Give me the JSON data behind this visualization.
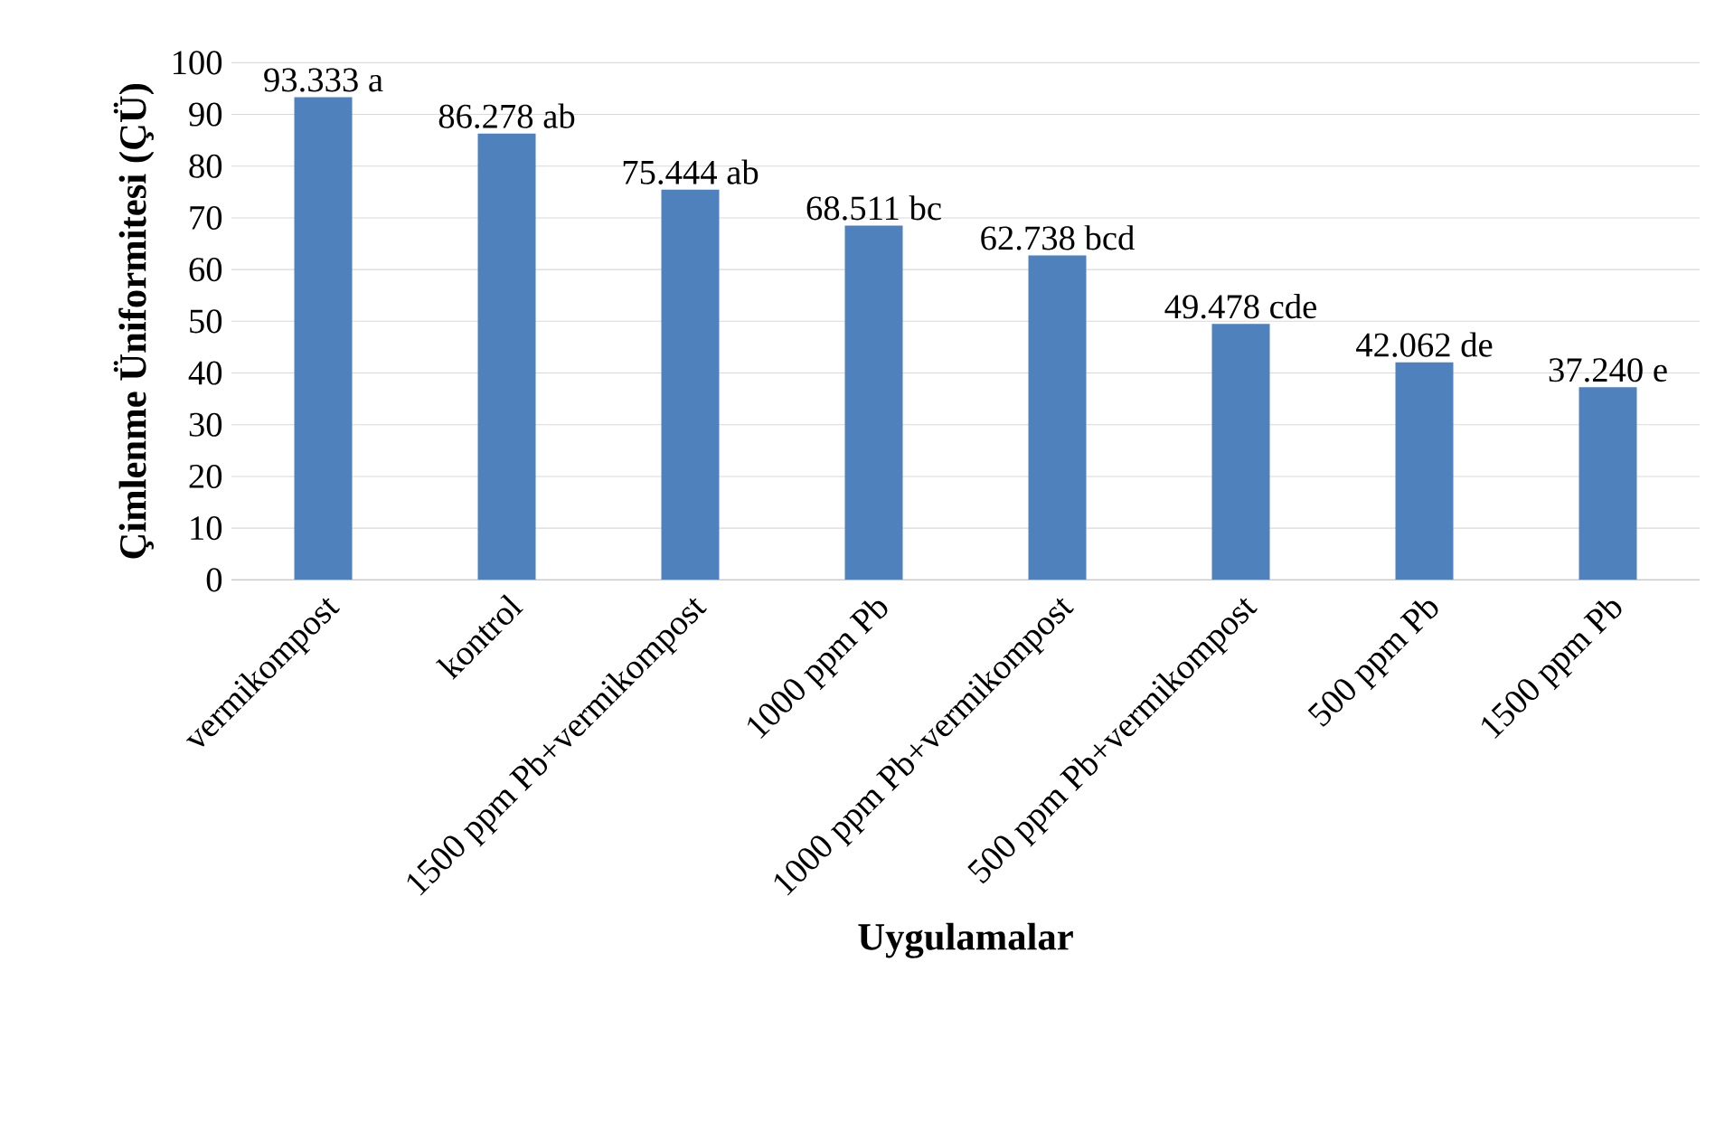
{
  "chart_data": {
    "type": "bar",
    "xlabel": "Uygulamalar",
    "ylabel": "Çimlenme Üniformitesi (ÇÜ)",
    "categories": [
      "vermikompost",
      "kontrol",
      "1500 ppm Pb+vermikompost",
      "1000 ppm Pb",
      "1000 ppm Pb+vermikompost",
      "500 ppm Pb+vermikompost",
      "500 ppm Pb",
      "1500 ppm Pb"
    ],
    "values": [
      93.333,
      86.278,
      75.444,
      68.511,
      62.738,
      49.478,
      42.062,
      37.24
    ],
    "value_labels": [
      "93.333 a",
      "86.278 ab",
      "75.444 ab",
      "68.511 bc",
      "62.738 bcd",
      "49.478 cde",
      "42.062 de",
      "37.240 e"
    ],
    "color": "#4f81bd",
    "ylim": [
      0,
      100
    ],
    "yticks": [
      0,
      10,
      20,
      30,
      40,
      50,
      60,
      70,
      80,
      90,
      100
    ],
    "grid": "y"
  }
}
